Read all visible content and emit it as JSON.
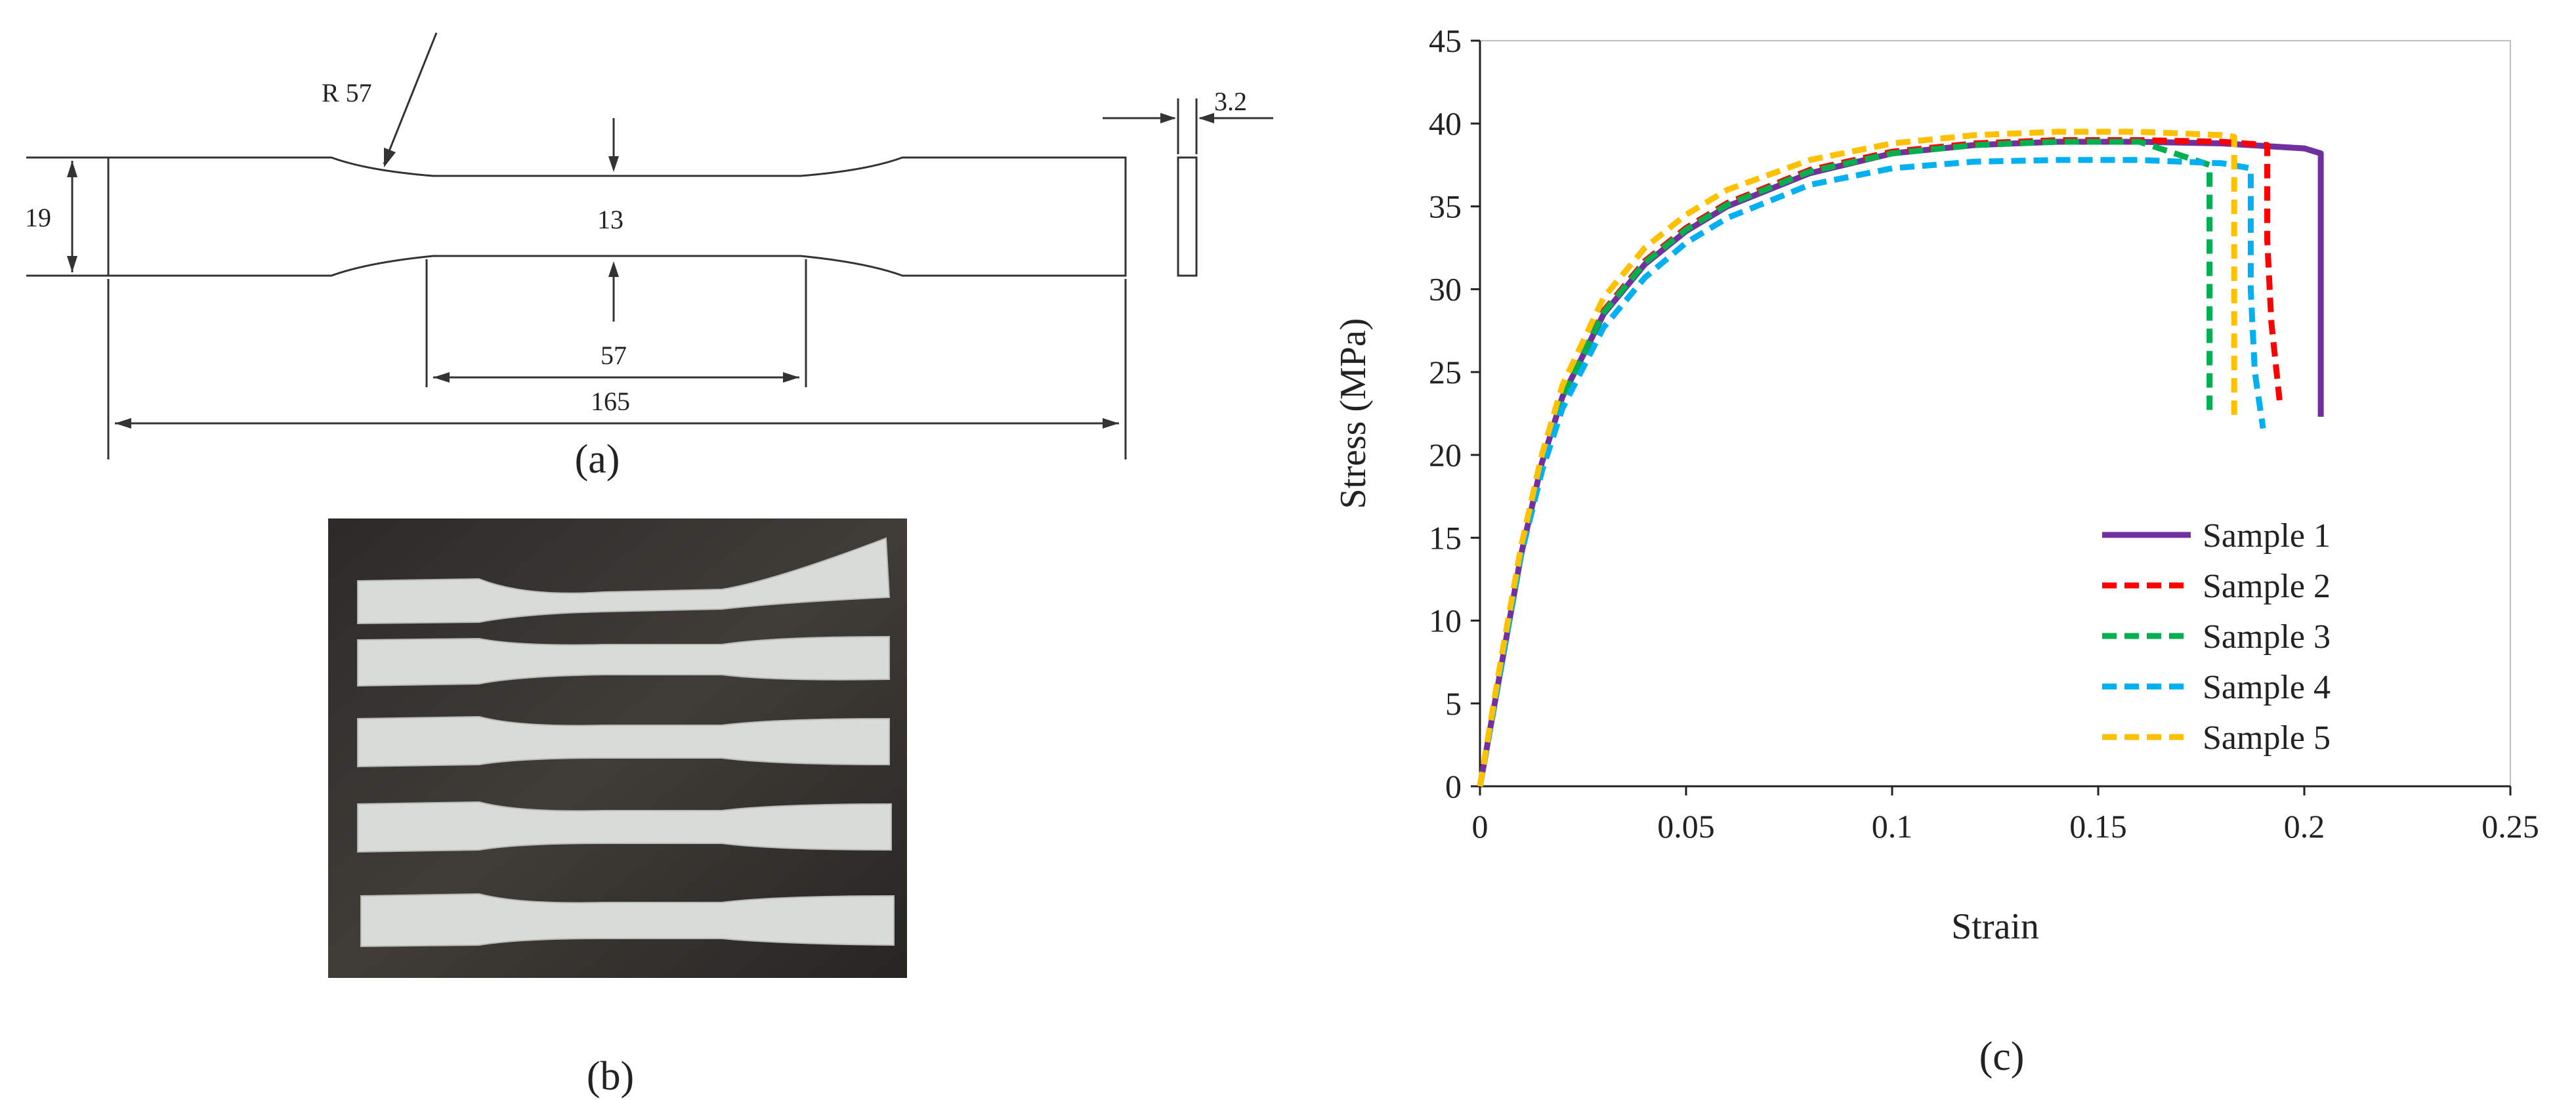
{
  "panels": {
    "a": {
      "caption": "(a)",
      "dims": {
        "radius": "R 57",
        "width": "19",
        "gauge_width": "13",
        "gauge_length": "57",
        "total_length": "165",
        "thickness": "3.2"
      }
    },
    "b": {
      "caption": "(b)",
      "specimen_count": 5
    },
    "c": {
      "caption": "(c)"
    }
  },
  "chart_data": {
    "type": "line",
    "xlabel": "Strain",
    "ylabel": "Stress (MPa)",
    "xlim": [
      0,
      0.25
    ],
    "ylim": [
      0,
      45
    ],
    "xticks": [
      0,
      0.05,
      0.1,
      0.15,
      0.2,
      0.25
    ],
    "yticks": [
      0,
      5,
      10,
      15,
      20,
      25,
      30,
      35,
      40,
      45
    ],
    "xtick_labels": [
      "0",
      "0.05",
      "0.1",
      "0.15",
      "0.2",
      "0.25"
    ],
    "ytick_labels": [
      "0",
      "5",
      "10",
      "15",
      "20",
      "25",
      "30",
      "35",
      "40",
      "45"
    ],
    "grid": false,
    "legend_position": "bottom-right",
    "series": [
      {
        "name": "Sample 1",
        "color": "#7030a0",
        "style": "solid",
        "x": [
          0,
          0.005,
          0.01,
          0.015,
          0.02,
          0.03,
          0.04,
          0.05,
          0.06,
          0.08,
          0.1,
          0.12,
          0.14,
          0.16,
          0.18,
          0.2,
          0.204,
          0.204
        ],
        "y": [
          0,
          7,
          14,
          19.5,
          23.5,
          28.5,
          31.5,
          33.5,
          35,
          37,
          38.2,
          38.7,
          38.9,
          38.9,
          38.8,
          38.5,
          38.2,
          22.3
        ]
      },
      {
        "name": "Sample 2",
        "color": "#ff0000",
        "style": "dashed",
        "x": [
          0,
          0.005,
          0.01,
          0.015,
          0.02,
          0.03,
          0.04,
          0.05,
          0.06,
          0.08,
          0.1,
          0.12,
          0.14,
          0.16,
          0.18,
          0.191,
          0.191,
          0.192,
          0.194
        ],
        "y": [
          0,
          7,
          14,
          19.5,
          23.5,
          28.7,
          31.7,
          33.7,
          35.2,
          37.2,
          38.3,
          38.8,
          39,
          39,
          38.9,
          38.7,
          33,
          28,
          23.3
        ]
      },
      {
        "name": "Sample 3",
        "color": "#00b050",
        "style": "dashed",
        "x": [
          0,
          0.005,
          0.01,
          0.015,
          0.02,
          0.03,
          0.04,
          0.05,
          0.06,
          0.08,
          0.1,
          0.12,
          0.14,
          0.16,
          0.177,
          0.177
        ],
        "y": [
          0,
          7,
          14,
          19.5,
          23.5,
          28.6,
          31.6,
          33.6,
          35.1,
          37.1,
          38.2,
          38.7,
          38.9,
          38.9,
          37.5,
          22.3
        ]
      },
      {
        "name": "Sample 4",
        "color": "#00b0f0",
        "style": "dashed",
        "x": [
          0,
          0.005,
          0.01,
          0.015,
          0.02,
          0.03,
          0.04,
          0.05,
          0.06,
          0.08,
          0.1,
          0.12,
          0.14,
          0.16,
          0.18,
          0.187,
          0.187,
          0.188,
          0.19
        ],
        "y": [
          0,
          7,
          14,
          19,
          22.8,
          27.7,
          30.7,
          32.8,
          34.3,
          36.3,
          37.3,
          37.7,
          37.8,
          37.8,
          37.6,
          37.3,
          30,
          25,
          21.6
        ]
      },
      {
        "name": "Sample 5",
        "color": "#ffc000",
        "style": "dashed",
        "x": [
          0,
          0.005,
          0.01,
          0.015,
          0.02,
          0.03,
          0.04,
          0.05,
          0.06,
          0.08,
          0.1,
          0.12,
          0.14,
          0.16,
          0.18,
          0.183,
          0.183
        ],
        "y": [
          0,
          7.5,
          14.5,
          20,
          24.2,
          29.5,
          32.5,
          34.5,
          36,
          37.8,
          38.8,
          39.3,
          39.5,
          39.5,
          39.3,
          39.2,
          22.3
        ]
      }
    ]
  }
}
